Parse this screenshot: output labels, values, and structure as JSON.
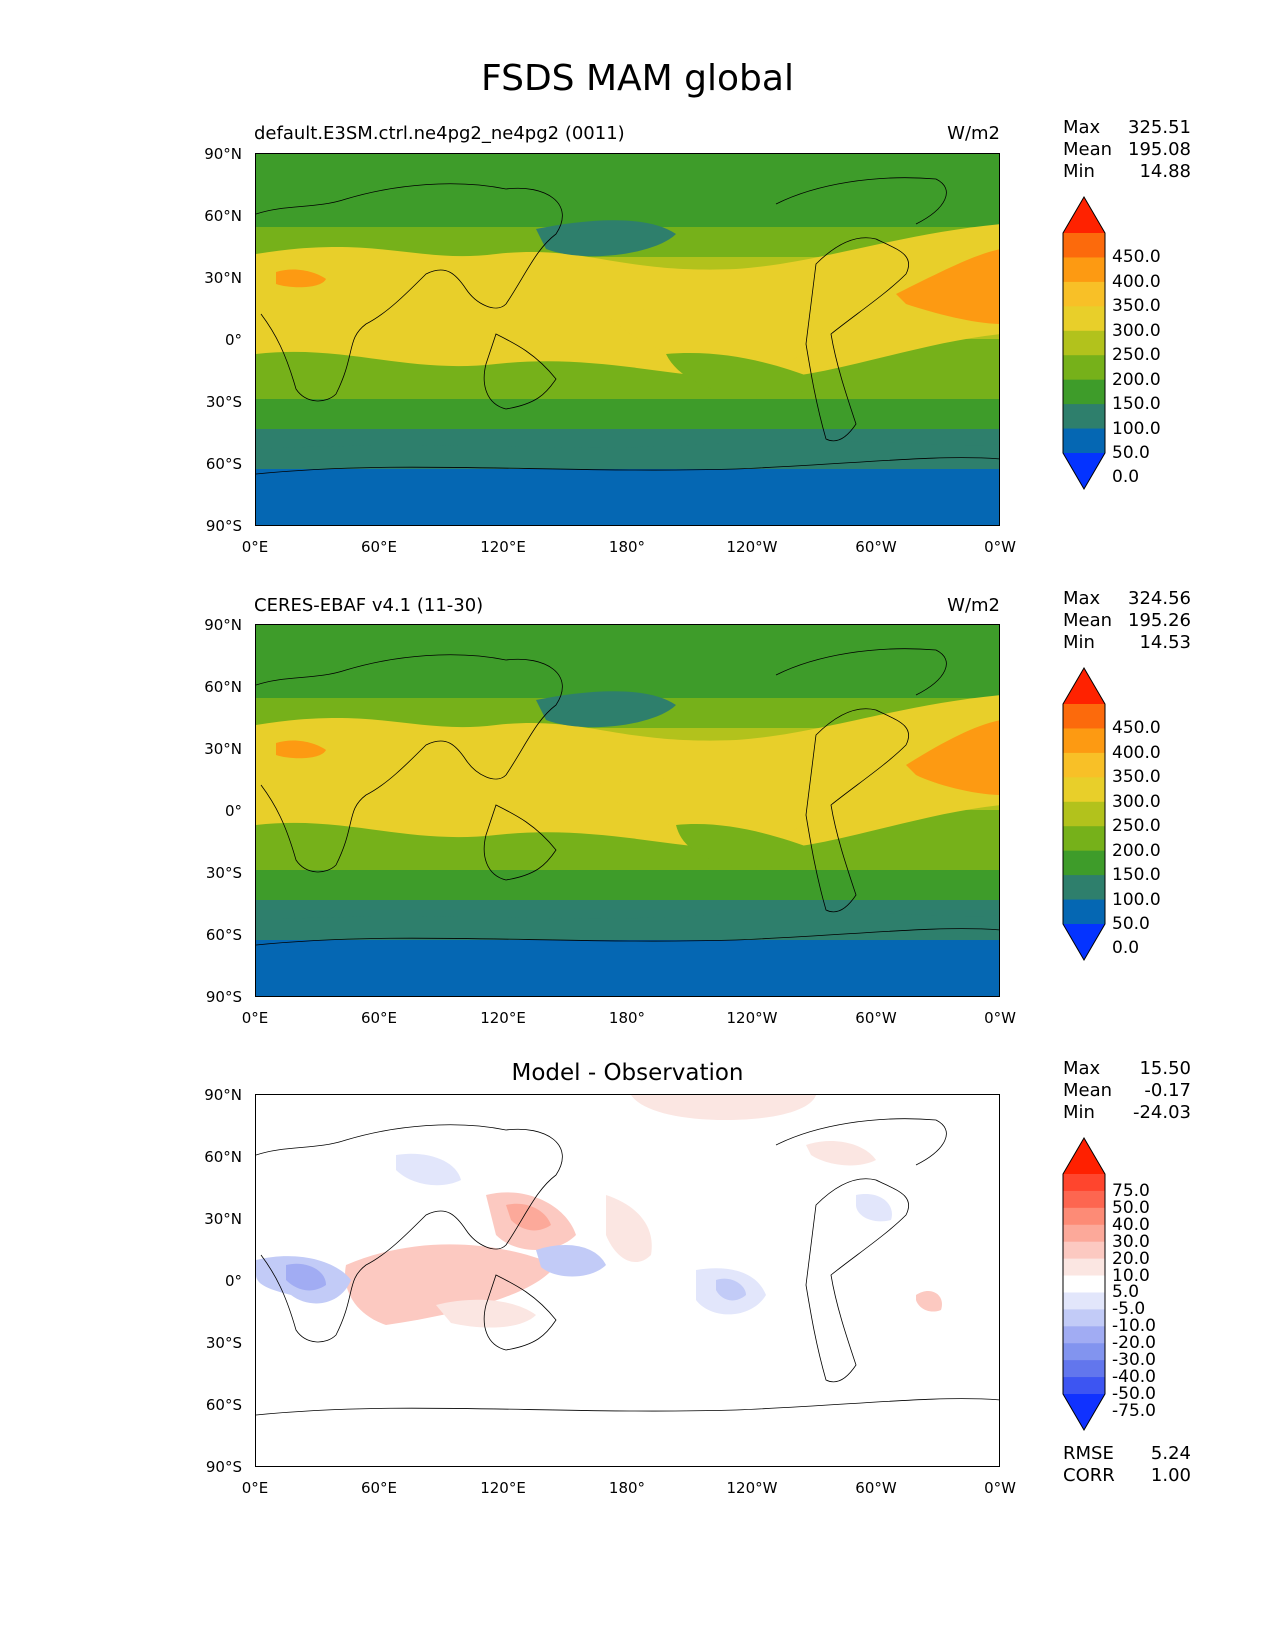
{
  "figure_title": "FSDS MAM global",
  "lat_ticks": [
    "90°N",
    "60°N",
    "30°N",
    "0°",
    "30°S",
    "60°S",
    "90°S"
  ],
  "lon_ticks": [
    "0°E",
    "60°E",
    "120°E",
    "180°",
    "120°W",
    "60°W",
    "0°W"
  ],
  "panels": [
    {
      "title_left": "default.E3SM.ctrl.ne4pg2_ne4pg2 (0011)",
      "title_right": "W/m2",
      "title_center": "",
      "stats": [
        {
          "label": "Max",
          "value": "325.51"
        },
        {
          "label": "Mean",
          "value": "195.08"
        },
        {
          "label": "Min",
          "value": "14.88"
        }
      ],
      "colorbar": {
        "labels": [
          "450.0",
          "400.0",
          "350.0",
          "300.0",
          "250.0",
          "200.0",
          "150.0",
          "100.0",
          "50.0",
          "0.0"
        ],
        "colors": [
          "#ff2200",
          "#fc6a0c",
          "#fd9a12",
          "#f8c027",
          "#e8cf2a",
          "#b2c21c",
          "#76b11a",
          "#3e9c2a",
          "#2e7f6c",
          "#0567b3",
          "#0433ff"
        ]
      }
    },
    {
      "title_left": "CERES-EBAF v4.1 (11-30)",
      "title_right": "W/m2",
      "title_center": "",
      "stats": [
        {
          "label": "Max",
          "value": "324.56"
        },
        {
          "label": "Mean",
          "value": "195.26"
        },
        {
          "label": "Min",
          "value": "14.53"
        }
      ],
      "colorbar": {
        "labels": [
          "450.0",
          "400.0",
          "350.0",
          "300.0",
          "250.0",
          "200.0",
          "150.0",
          "100.0",
          "50.0",
          "0.0"
        ],
        "colors": [
          "#ff2200",
          "#fc6a0c",
          "#fd9a12",
          "#f8c027",
          "#e8cf2a",
          "#b2c21c",
          "#76b11a",
          "#3e9c2a",
          "#2e7f6c",
          "#0567b3",
          "#0433ff"
        ]
      }
    },
    {
      "title_left": "",
      "title_right": "",
      "title_center": "Model - Observation",
      "stats": [
        {
          "label": "Max",
          "value": "15.50"
        },
        {
          "label": "Mean",
          "value": "-0.17"
        },
        {
          "label": "Min",
          "value": "-24.03"
        }
      ],
      "colorbar": {
        "labels": [
          "75.0",
          "50.0",
          "40.0",
          "30.0",
          "20.0",
          "10.0",
          "5.0",
          "-5.0",
          "-10.0",
          "-20.0",
          "-30.0",
          "-40.0",
          "-50.0",
          "-75.0"
        ],
        "colors": [
          "#ff2000",
          "#ff452d",
          "#fd6650",
          "#fd8b76",
          "#fca99a",
          "#fcc9c1",
          "#fbe6e2",
          "#ffffff",
          "#e2e6fb",
          "#c2cbf7",
          "#a1acf3",
          "#8294ef",
          "#6276ed",
          "#3d55f2",
          "#1032ff"
        ]
      },
      "error_stats": [
        {
          "label": "RMSE",
          "value": "5.24"
        },
        {
          "label": "CORR",
          "value": "1.00"
        }
      ]
    }
  ],
  "map_layers": {
    "base_colors": [
      "#0567b3",
      "#2e7f6c",
      "#3e9c2a",
      "#76b11a",
      "#b2c21c",
      "#e8cf2a",
      "#fd9a12"
    ]
  }
}
